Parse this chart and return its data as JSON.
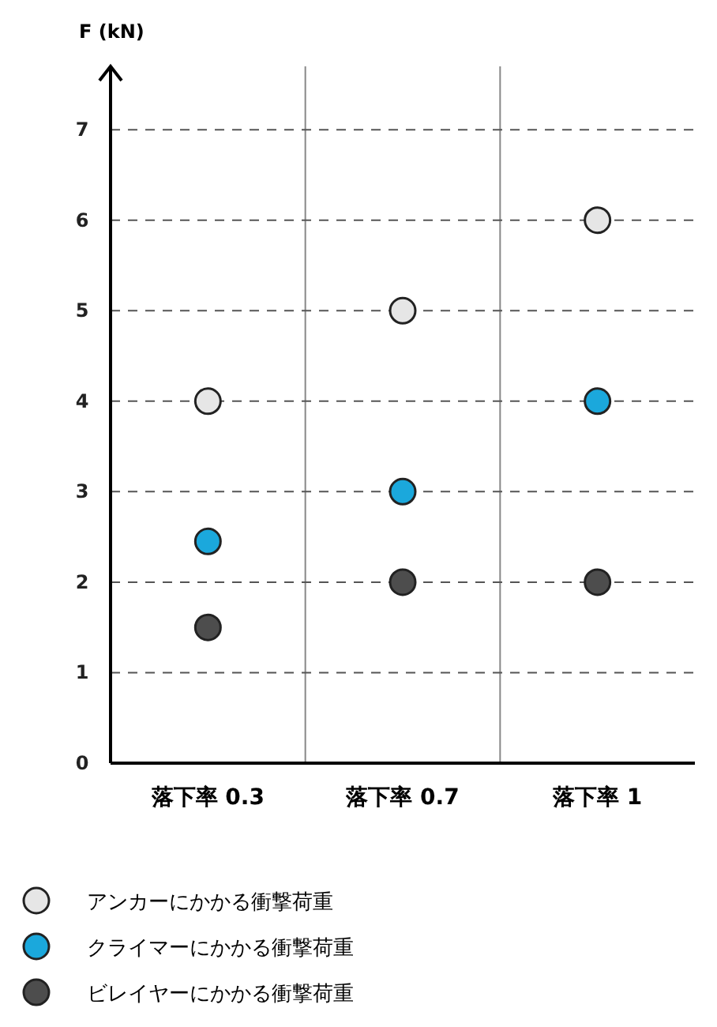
{
  "chart_data": {
    "type": "scatter",
    "ylabel": "F (kN)",
    "categories": [
      "落下率 0.3",
      "落下率 0.7",
      "落下率 1"
    ],
    "ylim": [
      0,
      7.7
    ],
    "yticks": [
      0,
      1,
      2,
      3,
      4,
      5,
      6,
      7
    ],
    "grid": "y",
    "marker": "circle",
    "legend": "bottom",
    "series": [
      {
        "name": "アンカーにかかる衝撃荷重",
        "color": "#e6e6e6",
        "values": [
          4,
          5,
          6
        ]
      },
      {
        "name": "クライマーにかかる衝撃荷重",
        "color": "#1ba8dc",
        "values": [
          2.45,
          3,
          4
        ]
      },
      {
        "name": "ビレイヤーにかかる衝撃荷重",
        "color": "#4d4d4d",
        "values": [
          1.5,
          2,
          2
        ]
      }
    ]
  }
}
